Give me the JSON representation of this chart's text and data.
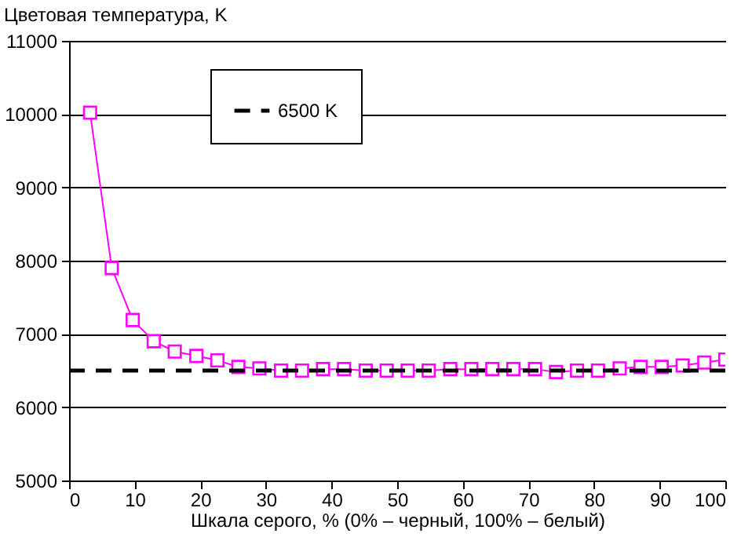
{
  "chart_data": {
    "type": "line",
    "xlabel": "Шкала серого, % (0% – черный, 100% – белый)",
    "ylabel": "Цветовая температура, K",
    "x": [
      3.2,
      6.5,
      9.7,
      12.9,
      16.1,
      19.4,
      22.6,
      25.8,
      29,
      32.3,
      35.5,
      38.7,
      41.9,
      45.2,
      48.4,
      51.6,
      54.8,
      58.1,
      61.3,
      64.5,
      67.7,
      71,
      74.2,
      77.4,
      80.6,
      83.9,
      87.1,
      90.3,
      93.5,
      96.8,
      100
    ],
    "series": [
      {
        "color": "#ff00ff",
        "values": [
          10020,
          7900,
          7190,
          6900,
          6760,
          6700,
          6640,
          6550,
          6530,
          6500,
          6500,
          6520,
          6520,
          6500,
          6500,
          6500,
          6500,
          6520,
          6520,
          6520,
          6520,
          6520,
          6480,
          6500,
          6500,
          6530,
          6550,
          6550,
          6570,
          6610,
          6650
        ]
      }
    ],
    "ref_lines": [
      {
        "axis": "y",
        "value": 6500,
        "label": "6500 K",
        "color": "#000000",
        "line_style": "dashed"
      }
    ],
    "xlim": [
      0,
      100
    ],
    "xticks": [
      0,
      10,
      20,
      30,
      40,
      50,
      60,
      70,
      80,
      90,
      100
    ],
    "ylim": [
      5000,
      11000
    ],
    "yticks": [
      5000,
      6000,
      7000,
      8000,
      9000,
      10000,
      11000
    ],
    "grid": "y",
    "legend": "top",
    "marker": "square",
    "line_style": "solid"
  }
}
